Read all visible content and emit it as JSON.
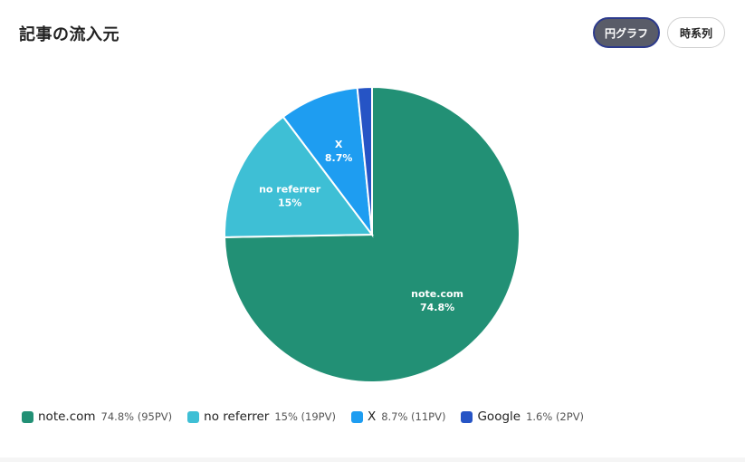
{
  "title": "記事の流入元",
  "toggles": [
    {
      "label": "円グラフ",
      "active": true
    },
    {
      "label": "時系列",
      "active": false
    }
  ],
  "chart_data": {
    "type": "pie",
    "slices": [
      {
        "name": "note.com",
        "percent": 74.8,
        "pv": 95,
        "color": "#229075",
        "label": "note.com",
        "pct_label": "74.8%",
        "legend_value": "74.8% (95PV)"
      },
      {
        "name": "no referrer",
        "percent": 15,
        "pv": 19,
        "color": "#3ebfd5",
        "label": "no referrer",
        "pct_label": "15%",
        "legend_value": "15% (19PV)"
      },
      {
        "name": "X",
        "percent": 8.7,
        "pv": 11,
        "color": "#1e9df1",
        "label": "X",
        "pct_label": "8.7%",
        "legend_value": "8.7% (11PV)"
      },
      {
        "name": "Google",
        "percent": 1.6,
        "pv": 2,
        "color": "#2654c5",
        "label": "",
        "pct_label": "",
        "legend_value": "1.6% (2PV)"
      }
    ],
    "legend_position": "bottom"
  }
}
